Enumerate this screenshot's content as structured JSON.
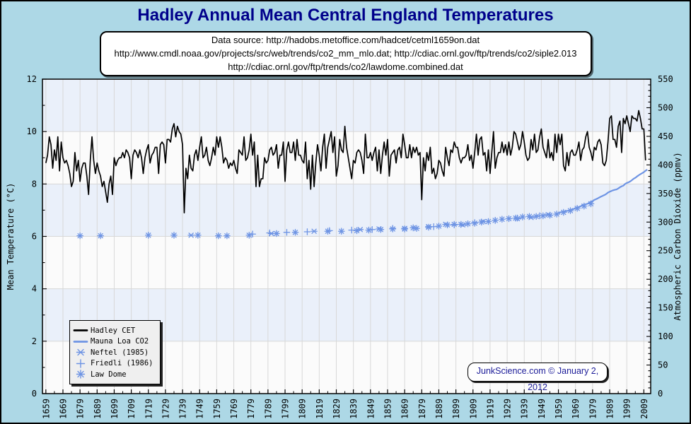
{
  "window": {
    "background": "#ADD8E6",
    "border_color": "#000000"
  },
  "header": {
    "title": "Hadley Annual Mean Central England Temperatures",
    "title_color": "#00008B"
  },
  "source_box": {
    "lines": [
      "Data source: http://hadobs.metoffice.com/hadcet/cetml1659on.dat",
      "http://www.cmdl.noaa.gov/projects/src/web/trends/co2_mm_mlo.dat; http://cdiac.ornl.gov/ftp/trends/co2/siple2.013",
      "http://cdiac.ornl.gov/ftp/trends/co2/lawdome.combined.dat"
    ]
  },
  "watermark": {
    "text": "JunkScience.com © January 2, 2012",
    "color": "#1C1C99"
  },
  "legend": {
    "position": "bottom-left",
    "items": [
      {
        "label": "Hadley CET",
        "marker": "line",
        "color": "#000000"
      },
      {
        "label": "Mauna Loa CO2",
        "marker": "line",
        "color": "#6E94E4"
      },
      {
        "label": "Neftel (1985)",
        "marker": "star6",
        "color": "#6E94E4"
      },
      {
        "label": "Friedli (1986)",
        "marker": "plus",
        "color": "#6E94E4"
      },
      {
        "label": "Law Dome",
        "marker": "star8",
        "color": "#6E94E4"
      }
    ]
  },
  "chart_data": {
    "type": "line",
    "title": "Hadley Annual Mean Central England Temperatures",
    "x": {
      "min": 1657,
      "max": 2013,
      "tick_step": 10,
      "minor_tick_step": 5,
      "tick_start": 1659,
      "tick_labels": [
        "1659",
        "1669",
        "1679",
        "1689",
        "1699",
        "1709",
        "1719",
        "1729",
        "1739",
        "1749",
        "1759",
        "1769",
        "1779",
        "1789",
        "1799",
        "1809",
        "1819",
        "1829",
        "1839",
        "1849",
        "1859",
        "1869",
        "1879",
        "1889",
        "1899",
        "1909",
        "1919",
        "1929",
        "1939",
        "1949",
        "1959",
        "1969",
        "1979",
        "1989",
        "1999",
        "2009"
      ]
    },
    "y_left": {
      "label": "Mean Temperature (°C)",
      "min": 0,
      "max": 12,
      "tick_step": 2,
      "minor_tick_step": 1,
      "ticks": [
        0,
        2,
        4,
        6,
        8,
        10,
        12
      ]
    },
    "y_right": {
      "label": "Atmospheric Carbon Dioxide (ppmv)",
      "min": 0,
      "max": 550,
      "tick_step": 50,
      "minor_tick_step": 10,
      "ticks": [
        0,
        50,
        100,
        150,
        200,
        250,
        300,
        350,
        400,
        450,
        500,
        550
      ]
    },
    "style": {
      "plot_bg": "#FBFBFB",
      "band": "#EAF0FA",
      "grid": "#D8D8D8",
      "frame": "#000000",
      "temperature_color": "#000000",
      "co2_color": "#6E94E4"
    },
    "series": [
      {
        "name": "Hadley CET",
        "axis": "left",
        "kind": "line",
        "unit": "°C",
        "start_year": 1659,
        "values": [
          8.8,
          9.1,
          9.8,
          9.5,
          8.6,
          9.3,
          8.9,
          9.8,
          8.5,
          9.6,
          9.0,
          8.8,
          8.9,
          8.7,
          8.4,
          7.9,
          8.1,
          9.2,
          8.5,
          8.9,
          8.1,
          8.6,
          8.8,
          8.8,
          8.3,
          7.6,
          8.9,
          9.8,
          8.9,
          8.4,
          8.8,
          8.5,
          8.3,
          7.9,
          8.1,
          7.7,
          7.3,
          8.0,
          8.3,
          7.6,
          9.0,
          8.7,
          8.9,
          9.0,
          9.0,
          9.2,
          9.0,
          9.3,
          9.2,
          9.0,
          8.2,
          9.1,
          9.3,
          9.2,
          9.0,
          9.3,
          9.0,
          8.4,
          9.0,
          9.3,
          9.5,
          8.8,
          9.1,
          9.2,
          9.4,
          9.4,
          8.4,
          9.5,
          9.6,
          9.5,
          8.8,
          9.7,
          9.7,
          9.6,
          10.1,
          10.3,
          9.8,
          10.2,
          10.0,
          9.9,
          9.5,
          6.9,
          8.6,
          8.2,
          9.1,
          8.6,
          8.5,
          9.1,
          9.3,
          8.9,
          9.4,
          9.8,
          9.0,
          9.1,
          9.4,
          8.9,
          8.7,
          9.0,
          9.4,
          9.1,
          9.8,
          9.4,
          9.8,
          9.4,
          8.8,
          9.0,
          8.9,
          8.6,
          8.8,
          8.7,
          8.9,
          8.6,
          8.4,
          9.3,
          9.2,
          9.1,
          9.8,
          8.9,
          9.0,
          9.3,
          9.9,
          9.1,
          9.6,
          7.9,
          9.1,
          7.9,
          8.2,
          8.2,
          9.0,
          8.8,
          8.9,
          9.3,
          9.4,
          9.1,
          9.2,
          9.5,
          8.6,
          9.1,
          9.1,
          9.6,
          8.1,
          9.3,
          9.6,
          9.2,
          9.2,
          9.6,
          8.9,
          9.7,
          9.1,
          9.1,
          8.9,
          8.8,
          9.6,
          8.2,
          8.9,
          7.8,
          9.1,
          7.9,
          8.8,
          9.5,
          9.1,
          8.5,
          9.4,
          9.9,
          8.6,
          9.4,
          9.7,
          10.0,
          9.2,
          9.8,
          8.3,
          8.7,
          9.7,
          9.3,
          9.2,
          10.2,
          9.4,
          9.0,
          8.6,
          8.2,
          8.9,
          8.8,
          9.2,
          9.3,
          9.2,
          8.9,
          8.4,
          9.9,
          9.0,
          9.0,
          9.2,
          8.9,
          9.2,
          9.4,
          8.5,
          9.3,
          8.4,
          9.1,
          9.6,
          9.1,
          9.7,
          8.3,
          9.1,
          9.2,
          9.3,
          8.8,
          9.3,
          9.4,
          9.0,
          9.9,
          9.5,
          9.0,
          9.0,
          9.5,
          9.0,
          9.4,
          9.2,
          9.4,
          9.1,
          9.2,
          7.4,
          9.0,
          8.5,
          9.2,
          8.9,
          9.4,
          8.4,
          8.6,
          8.2,
          8.4,
          8.9,
          8.8,
          8.5,
          8.3,
          9.4,
          9.0,
          8.7,
          9.3,
          9.2,
          9.6,
          9.4,
          9.4,
          9.0,
          8.8,
          9.0,
          9.0,
          9.1,
          9.5,
          8.9,
          9.1,
          8.6,
          9.2,
          9.9,
          9.1,
          9.7,
          9.8,
          9.1,
          9.2,
          8.5,
          9.3,
          8.4,
          9.2,
          10.0,
          8.6,
          9.0,
          9.2,
          9.2,
          9.6,
          9.2,
          9.5,
          9.1,
          9.6,
          9.1,
          9.4,
          10.0,
          9.9,
          9.6,
          9.3,
          9.5,
          10.0,
          9.6,
          9.1,
          8.9,
          9.0,
          9.7,
          9.3,
          9.9,
          9.2,
          9.3,
          9.8,
          10.1,
          9.4,
          9.2,
          9.0,
          9.7,
          9.0,
          9.2,
          8.9,
          9.9,
          9.2,
          9.9,
          9.5,
          9.9,
          8.7,
          8.5,
          9.2,
          8.7,
          9.2,
          9.3,
          9.1,
          9.1,
          9.3,
          9.6,
          8.9,
          9.3,
          9.4,
          9.8,
          10.0,
          9.4,
          9.2,
          8.9,
          9.4,
          9.3,
          9.6,
          9.7,
          9.5,
          8.8,
          8.7,
          8.9,
          9.6,
          10.5,
          10.6,
          9.7,
          9.7,
          9.4,
          10.2,
          10.4,
          9.2,
          10.5,
          10.3,
          10.6,
          10.3,
          10.0,
          10.6,
          10.5,
          10.5,
          10.4,
          10.8,
          10.5,
          10.1,
          10.1,
          8.9
        ]
      },
      {
        "name": "Mauna Loa CO2",
        "axis": "right",
        "kind": "line",
        "unit": "ppmv",
        "start_year": 1959,
        "values": [
          316.0,
          316.9,
          317.6,
          318.5,
          319.0,
          319.6,
          320.0,
          321.4,
          322.2,
          323.0,
          324.6,
          325.7,
          326.3,
          327.5,
          329.7,
          330.2,
          331.1,
          332.0,
          333.8,
          335.4,
          336.8,
          338.8,
          340.1,
          341.5,
          343.1,
          344.7,
          346.1,
          347.4,
          349.2,
          351.6,
          353.1,
          354.4,
          355.6,
          356.5,
          357.1,
          358.8,
          360.8,
          362.6,
          363.7,
          366.7,
          368.4,
          369.6,
          371.1,
          373.3,
          375.8,
          377.5,
          379.8,
          381.9,
          383.8,
          385.6,
          387.4,
          389.9,
          391.7
        ]
      },
      {
        "name": "Neftel (1985)",
        "axis": "right",
        "kind": "scatter",
        "marker": "star6",
        "unit": "ppmv",
        "years": [
          1744,
          1791,
          1816,
          1843,
          1854,
          1869,
          1874,
          1883,
          1893,
          1903,
          1915,
          1935,
          1943,
          1953
        ],
        "values": [
          277,
          280,
          284,
          287,
          288,
          289,
          290,
          292,
          296,
          295,
          301,
          306,
          308,
          313
        ]
      },
      {
        "name": "Friedli (1986)",
        "axis": "right",
        "kind": "scatter",
        "marker": "plus",
        "unit": "ppmv",
        "years": [
          1780,
          1790,
          1800,
          1812,
          1825,
          1838,
          1850,
          1862,
          1874,
          1886,
          1898,
          1910,
          1922,
          1935,
          1948
        ],
        "values": [
          279,
          281,
          282,
          283,
          285,
          286,
          287,
          289,
          290,
          292,
          295,
          299,
          303,
          307,
          311
        ]
      },
      {
        "name": "Law Dome",
        "axis": "right",
        "kind": "scatter",
        "marker": "star8",
        "unit": "ppmv",
        "years": [
          1679,
          1691,
          1719,
          1734,
          1748,
          1760,
          1765,
          1778,
          1794,
          1805,
          1824,
          1832,
          1841,
          1848,
          1855,
          1862,
          1869,
          1876,
          1883,
          1889,
          1894,
          1898,
          1902,
          1906,
          1910,
          1914,
          1918,
          1922,
          1926,
          1930,
          1934,
          1938,
          1942,
          1946,
          1950,
          1954,
          1958,
          1962,
          1966,
          1970,
          1974,
          1978
        ],
        "values": [
          276,
          276,
          277,
          277,
          277,
          276,
          276,
          277,
          280,
          282,
          284,
          284,
          285,
          286,
          287,
          288,
          288,
          289,
          291,
          293,
          295,
          296,
          296,
          297,
          298,
          300,
          301,
          303,
          305,
          306,
          307,
          309,
          310,
          310,
          311,
          312,
          314,
          317,
          320,
          324,
          328,
          332
        ]
      }
    ]
  }
}
